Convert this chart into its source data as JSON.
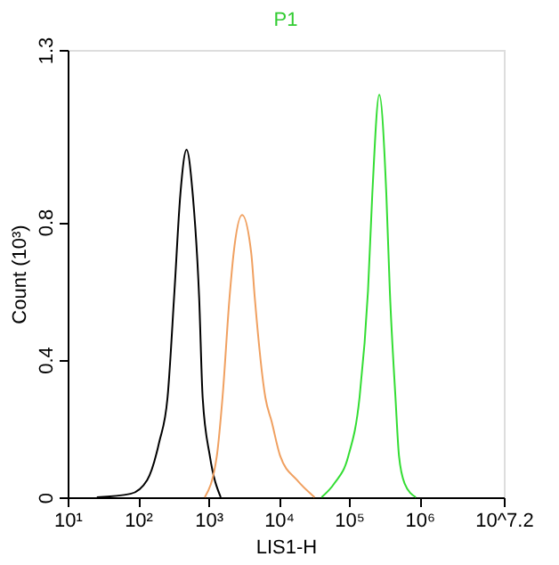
{
  "chart_data": {
    "type": "line",
    "title": "P1",
    "xlabel": "LIS1-H",
    "ylabel": "Count (10³)",
    "log": "x",
    "grid": false,
    "legend": false,
    "marker": "none",
    "line_style": "solid",
    "xlim": [
      10,
      15848932
    ],
    "xticks": [
      {
        "value": 10,
        "label": "10¹"
      },
      {
        "value": 100,
        "label": "10²"
      },
      {
        "value": 1000,
        "label": "10³"
      },
      {
        "value": 10000,
        "label": "10⁴"
      },
      {
        "value": 100000,
        "label": "10⁵"
      },
      {
        "value": 1000000,
        "label": "10⁶"
      },
      {
        "value": 15848932,
        "label": "10^7.2"
      }
    ],
    "ylim": [
      0,
      1.3
    ],
    "yticks": [
      0,
      0.4,
      0.8,
      1.3
    ],
    "series": [
      {
        "color": "#000000",
        "x": [
          26,
          78,
          135,
          200,
          263,
          330,
          400,
          490,
          600,
          740,
          830,
          1050,
          1500
        ],
        "values": [
          0,
          0.01,
          0.05,
          0.16,
          0.29,
          0.6,
          0.88,
          1.01,
          0.88,
          0.58,
          0.29,
          0.12,
          0
        ]
      },
      {
        "color": "#f0a060",
        "x": [
          890,
          1320,
          1590,
          2000,
          2290,
          3020,
          4070,
          4570,
          6460,
          7940,
          10500,
          18200,
          32400
        ],
        "values": [
          0,
          0.12,
          0.29,
          0.58,
          0.71,
          0.82,
          0.71,
          0.58,
          0.29,
          0.22,
          0.12,
          0.05,
          0
        ]
      },
      {
        "color": "#33dd33",
        "x": [
          40700,
          61700,
          97700,
          141000,
          186000,
          214000,
          269000,
          339000,
          380000,
          457000,
          513000,
          617000,
          891000
        ],
        "values": [
          0,
          0.04,
          0.12,
          0.29,
          0.6,
          0.88,
          1.17,
          0.88,
          0.6,
          0.29,
          0.12,
          0.04,
          0
        ]
      }
    ]
  }
}
